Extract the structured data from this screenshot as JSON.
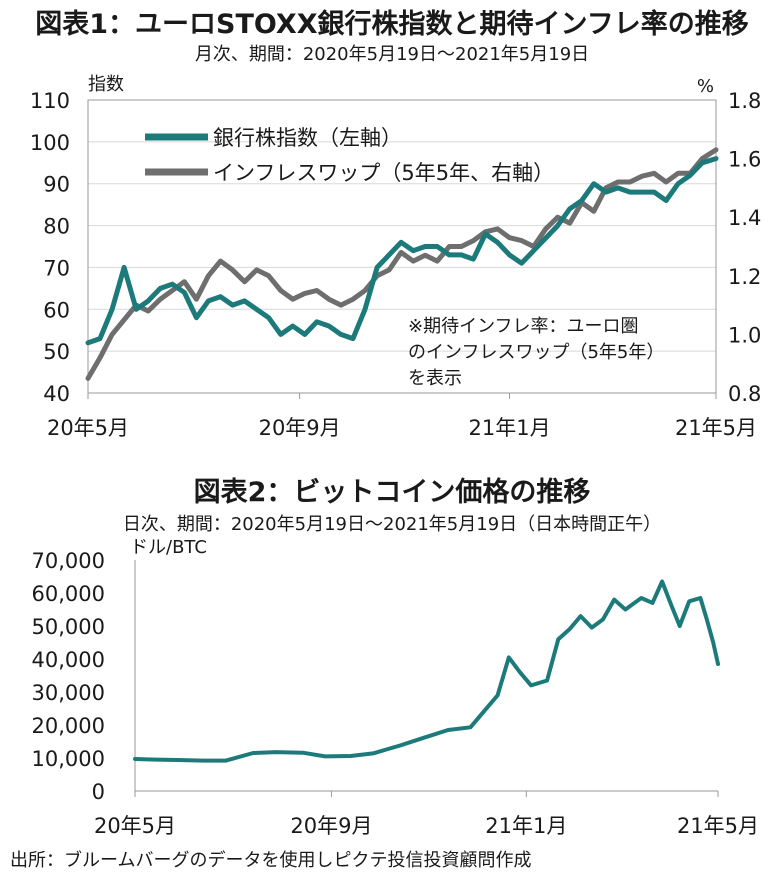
{
  "chart_data": [
    {
      "type": "line",
      "title": "図表1：ユーロSTOXX銀行株指数と期待インフレ率の推移",
      "subtitle": "月次、期間：2020年5月19日～2021年5月19日",
      "ylabel_left": "指数",
      "ylabel_right": "%",
      "ylim_left": [
        40,
        110
      ],
      "yticks_left": [
        "40",
        "50",
        "60",
        "70",
        "80",
        "90",
        "100",
        "110"
      ],
      "ylim_right": [
        0.8,
        1.8
      ],
      "yticks_right": [
        "0.8",
        "1.0",
        "1.2",
        "1.4",
        "1.6",
        "1.8"
      ],
      "xticks": [
        "20年5月",
        "20年9月",
        "21年1月",
        "21年5月"
      ],
      "xticks_pos": [
        "2020-05-19",
        "2020-09-19",
        "2021-01-19",
        "2021-05-19"
      ],
      "xlim": [
        "2020-05-19",
        "2021-05-19"
      ],
      "annotation": [
        "※期待インフレ率：ユーロ圏",
        "のインフレスワップ（5年5年）",
        "を表示"
      ],
      "series": [
        {
          "name": "銀行株指数（左軸）",
          "axis": "left",
          "color": "#1d7a7a",
          "x": [
            "2020-05-19",
            "2020-05-26",
            "2020-06-02",
            "2020-06-09",
            "2020-06-16",
            "2020-06-23",
            "2020-06-30",
            "2020-07-07",
            "2020-07-14",
            "2020-07-21",
            "2020-07-28",
            "2020-08-04",
            "2020-08-11",
            "2020-08-18",
            "2020-08-25",
            "2020-09-01",
            "2020-09-08",
            "2020-09-15",
            "2020-09-22",
            "2020-09-29",
            "2020-10-06",
            "2020-10-13",
            "2020-10-20",
            "2020-10-27",
            "2020-11-03",
            "2020-11-10",
            "2020-11-17",
            "2020-11-24",
            "2020-12-01",
            "2020-12-08",
            "2020-12-15",
            "2020-12-22",
            "2020-12-29",
            "2021-01-05",
            "2021-01-12",
            "2021-01-19",
            "2021-01-26",
            "2021-02-02",
            "2021-02-09",
            "2021-02-16",
            "2021-02-23",
            "2021-03-02",
            "2021-03-09",
            "2021-03-16",
            "2021-03-23",
            "2021-03-30",
            "2021-04-06",
            "2021-04-13",
            "2021-04-20",
            "2021-04-27",
            "2021-05-04",
            "2021-05-11",
            "2021-05-19"
          ],
          "values": [
            52,
            53,
            60,
            70,
            60,
            62,
            65,
            66,
            64,
            58,
            62,
            63,
            61,
            62,
            60,
            58,
            54,
            56,
            54,
            57,
            56,
            54,
            53,
            60,
            70,
            73,
            76,
            74,
            75,
            75,
            73,
            73,
            72,
            78,
            76,
            73,
            71,
            74,
            77,
            80,
            84,
            86,
            90,
            88,
            89,
            88,
            88,
            88,
            86,
            90,
            92,
            95,
            96
          ]
        },
        {
          "name": "インフレスワップ（5年5年、右軸）",
          "axis": "right",
          "color": "#6e6e6e",
          "x": [
            "2020-05-19",
            "2020-05-26",
            "2020-06-02",
            "2020-06-09",
            "2020-06-16",
            "2020-06-23",
            "2020-06-30",
            "2020-07-07",
            "2020-07-14",
            "2020-07-21",
            "2020-07-28",
            "2020-08-04",
            "2020-08-11",
            "2020-08-18",
            "2020-08-25",
            "2020-09-01",
            "2020-09-08",
            "2020-09-15",
            "2020-09-22",
            "2020-09-29",
            "2020-10-06",
            "2020-10-13",
            "2020-10-20",
            "2020-10-27",
            "2020-11-03",
            "2020-11-10",
            "2020-11-17",
            "2020-11-24",
            "2020-12-01",
            "2020-12-08",
            "2020-12-15",
            "2020-12-22",
            "2020-12-29",
            "2021-01-05",
            "2021-01-12",
            "2021-01-19",
            "2021-01-26",
            "2021-02-02",
            "2021-02-09",
            "2021-02-16",
            "2021-02-23",
            "2021-03-02",
            "2021-03-09",
            "2021-03-16",
            "2021-03-23",
            "2021-03-30",
            "2021-04-06",
            "2021-04-13",
            "2021-04-20",
            "2021-04-27",
            "2021-05-04",
            "2021-05-11",
            "2021-05-19"
          ],
          "values": [
            0.85,
            0.92,
            1.0,
            1.05,
            1.1,
            1.08,
            1.12,
            1.15,
            1.18,
            1.12,
            1.2,
            1.25,
            1.22,
            1.18,
            1.22,
            1.2,
            1.15,
            1.12,
            1.14,
            1.15,
            1.12,
            1.1,
            1.12,
            1.15,
            1.2,
            1.22,
            1.28,
            1.25,
            1.27,
            1.25,
            1.3,
            1.3,
            1.32,
            1.35,
            1.36,
            1.33,
            1.32,
            1.3,
            1.36,
            1.4,
            1.38,
            1.45,
            1.42,
            1.5,
            1.52,
            1.52,
            1.54,
            1.55,
            1.52,
            1.55,
            1.55,
            1.6,
            1.63
          ]
        }
      ]
    },
    {
      "type": "line",
      "title": "図表2：ビットコイン価格の推移",
      "subtitle": "日次、期間：2020年5月19日～2021年5月19日（日本時間正午）",
      "ylabel": "ドル/BTC",
      "ylim": [
        0,
        70000
      ],
      "yticks": [
        "0",
        "10,000",
        "20,000",
        "30,000",
        "40,000",
        "50,000",
        "60,000",
        "70,000"
      ],
      "xticks": [
        "20年5月",
        "20年9月",
        "21年1月",
        "21年5月"
      ],
      "xticks_pos": [
        "2020-05-19",
        "2020-09-19",
        "2021-01-19",
        "2021-05-19"
      ],
      "xlim": [
        "2020-05-19",
        "2021-05-19"
      ],
      "series": [
        {
          "name": "",
          "color": "#1d7a7a",
          "x": [
            "2020-05-19",
            "2020-06-01",
            "2020-06-15",
            "2020-07-01",
            "2020-07-15",
            "2020-08-01",
            "2020-08-15",
            "2020-09-01",
            "2020-09-15",
            "2020-10-01",
            "2020-10-15",
            "2020-11-01",
            "2020-11-15",
            "2020-12-01",
            "2020-12-15",
            "2021-01-01",
            "2021-01-08",
            "2021-01-15",
            "2021-01-22",
            "2021-02-01",
            "2021-02-08",
            "2021-02-15",
            "2021-02-22",
            "2021-03-01",
            "2021-03-08",
            "2021-03-15",
            "2021-03-22",
            "2021-04-01",
            "2021-04-08",
            "2021-04-14",
            "2021-04-20",
            "2021-04-25",
            "2021-05-01",
            "2021-05-08",
            "2021-05-12",
            "2021-05-16",
            "2021-05-19"
          ],
          "values": [
            9700,
            9500,
            9400,
            9200,
            9200,
            11500,
            11800,
            11600,
            10500,
            10600,
            11400,
            13800,
            16000,
            18500,
            19300,
            29000,
            40500,
            36000,
            32000,
            33500,
            46000,
            49000,
            53000,
            49500,
            52000,
            58000,
            55000,
            58500,
            57000,
            63500,
            56000,
            50000,
            57500,
            58500,
            52000,
            45000,
            38500
          ]
        }
      ]
    }
  ],
  "source": "出所：ブルームバーグのデータを使用しピクテ投信投資顧問作成"
}
